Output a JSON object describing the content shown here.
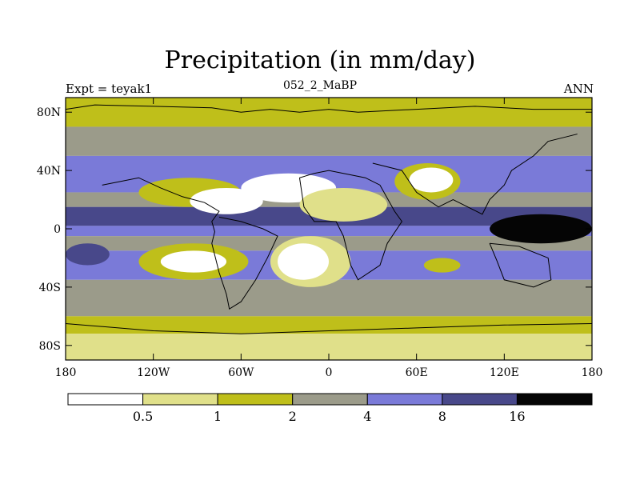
{
  "chart_data": {
    "type": "heatmap",
    "title": "Precipitation (in mm/day)",
    "left_label": "Expt = teyak1",
    "center_label": "052_2_MaBP",
    "right_label": "ANN",
    "x_ticks": [
      "180",
      "120W",
      "60W",
      "0",
      "60E",
      "120E",
      "180"
    ],
    "y_ticks": [
      "80N",
      "40N",
      "0",
      "40S",
      "80S"
    ],
    "colorbar": {
      "levels": [
        "0.5",
        "1",
        "2",
        "4",
        "8",
        "16"
      ],
      "colors": [
        "#ffffff",
        "#e0e08a",
        "#bfbf1a",
        "#9b9b8a",
        "#7a7ad8",
        "#48488a",
        "#050505"
      ]
    },
    "bands": [
      {
        "lat": [
          90,
          70
        ],
        "class": 2
      },
      {
        "lat": [
          70,
          50
        ],
        "class": 3
      },
      {
        "lat": [
          50,
          25
        ],
        "class": 4
      },
      {
        "lat": [
          25,
          15
        ],
        "class": 3
      },
      {
        "lat": [
          15,
          2
        ],
        "class": 5
      },
      {
        "lat": [
          2,
          -5
        ],
        "class": 4
      },
      {
        "lat": [
          -5,
          -15
        ],
        "class": 3
      },
      {
        "lat": [
          -15,
          -35
        ],
        "class": 4
      },
      {
        "lat": [
          -35,
          -60
        ],
        "class": 3
      },
      {
        "lat": [
          -60,
          -72
        ],
        "class": 2
      },
      {
        "lat": [
          -72,
          -90
        ],
        "class": 1
      }
    ],
    "patches": [
      {
        "lon": [
          -130,
          -60
        ],
        "lat": [
          35,
          15
        ],
        "class": 2
      },
      {
        "lon": [
          -95,
          -45
        ],
        "lat": [
          28,
          10
        ],
        "class": 0
      },
      {
        "lon": [
          -60,
          5
        ],
        "lat": [
          38,
          18
        ],
        "class": 0
      },
      {
        "lon": [
          -20,
          40
        ],
        "lat": [
          28,
          5
        ],
        "class": 1
      },
      {
        "lon": [
          45,
          90
        ],
        "lat": [
          45,
          20
        ],
        "class": 2
      },
      {
        "lon": [
          55,
          85
        ],
        "lat": [
          42,
          25
        ],
        "class": 0
      },
      {
        "lon": [
          -130,
          -55
        ],
        "lat": [
          -10,
          -35
        ],
        "class": 2
      },
      {
        "lon": [
          -115,
          -70
        ],
        "lat": [
          -15,
          -30
        ],
        "class": 0
      },
      {
        "lon": [
          -40,
          15
        ],
        "lat": [
          -5,
          -40
        ],
        "class": 1
      },
      {
        "lon": [
          -35,
          0
        ],
        "lat": [
          -10,
          -35
        ],
        "class": 0
      },
      {
        "lon": [
          65,
          90
        ],
        "lat": [
          -20,
          -30
        ],
        "class": 2
      },
      {
        "lon": [
          110,
          180
        ],
        "lat": [
          10,
          -10
        ],
        "class": 6
      },
      {
        "lon": [
          -180,
          -150
        ],
        "lat": [
          -10,
          -25
        ],
        "class": 5
      }
    ],
    "coastlines": [
      [
        [
          -180,
          82
        ],
        [
          -160,
          85
        ],
        [
          -120,
          84
        ],
        [
          -80,
          83
        ],
        [
          -60,
          80
        ],
        [
          -40,
          82
        ],
        [
          -20,
          80
        ],
        [
          0,
          82
        ],
        [
          20,
          80
        ],
        [
          60,
          82
        ],
        [
          100,
          84
        ],
        [
          140,
          82
        ],
        [
          180,
          82
        ]
      ],
      [
        [
          -155,
          30
        ],
        [
          -130,
          35
        ],
        [
          -115,
          28
        ],
        [
          -100,
          22
        ],
        [
          -85,
          18
        ],
        [
          -75,
          12
        ],
        [
          -80,
          5
        ],
        [
          -78,
          -2
        ],
        [
          -80,
          -10
        ],
        [
          -75,
          -30
        ],
        [
          -70,
          -45
        ],
        [
          -68,
          -55
        ],
        [
          -60,
          -50
        ],
        [
          -50,
          -35
        ],
        [
          -42,
          -20
        ],
        [
          -35,
          -5
        ],
        [
          -45,
          0
        ],
        [
          -60,
          5
        ],
        [
          -75,
          8
        ]
      ],
      [
        [
          -20,
          35
        ],
        [
          -10,
          38
        ],
        [
          0,
          40
        ],
        [
          10,
          38
        ],
        [
          25,
          35
        ],
        [
          35,
          30
        ],
        [
          45,
          12
        ],
        [
          50,
          5
        ],
        [
          40,
          -10
        ],
        [
          35,
          -25
        ],
        [
          20,
          -35
        ],
        [
          15,
          -25
        ],
        [
          10,
          -5
        ],
        [
          5,
          5
        ],
        [
          -10,
          5
        ],
        [
          -17,
          15
        ],
        [
          -20,
          35
        ]
      ],
      [
        [
          30,
          45
        ],
        [
          50,
          40
        ],
        [
          60,
          25
        ],
        [
          75,
          15
        ],
        [
          85,
          20
        ],
        [
          95,
          15
        ],
        [
          105,
          10
        ],
        [
          110,
          20
        ],
        [
          120,
          30
        ],
        [
          125,
          40
        ],
        [
          140,
          50
        ],
        [
          150,
          60
        ],
        [
          170,
          65
        ]
      ],
      [
        [
          110,
          -10
        ],
        [
          130,
          -12
        ],
        [
          150,
          -20
        ],
        [
          152,
          -35
        ],
        [
          140,
          -40
        ],
        [
          120,
          -35
        ],
        [
          115,
          -22
        ],
        [
          110,
          -10
        ]
      ],
      [
        [
          -180,
          -65
        ],
        [
          -120,
          -70
        ],
        [
          -60,
          -72
        ],
        [
          0,
          -70
        ],
        [
          60,
          -68
        ],
        [
          120,
          -66
        ],
        [
          180,
          -65
        ]
      ]
    ]
  }
}
